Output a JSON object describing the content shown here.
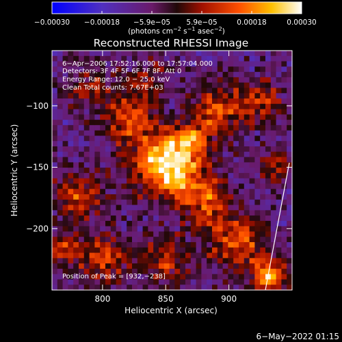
{
  "chart_data": {
    "type": "heatmap",
    "title": "Reconstructed RHESSI Image",
    "xlabel": "Heliocentric X (arcsec)",
    "ylabel": "Heliocentric Y (arcsec)",
    "xlim": [
      760,
      950
    ],
    "ylim": [
      -250,
      -55
    ],
    "x_ticks": [
      800,
      850,
      900
    ],
    "y_ticks": [
      -100,
      -150,
      -200
    ],
    "x_tick_labels": [
      "800",
      "850",
      "900"
    ],
    "y_tick_labels": [
      "−100",
      "−150",
      "−200"
    ],
    "colorbar": {
      "range": [
        -0.0003,
        0.0003
      ],
      "tick_labels": [
        "−0.00030",
        "−0.00018",
        "−5.9e−05",
        "5.9e−05",
        "0.00018",
        "0.00030"
      ],
      "units_prefix": "(photons cm",
      "units_exp1": "−2",
      "units_mid": " s",
      "units_exp2": "−1",
      "units_mid2": " asec",
      "units_exp3": "−2",
      "units_suffix": ")"
    },
    "annotations": {
      "time_range": "6−Apr−2006 17:52:16.000 to 17:57:04.000",
      "detectors": "Detectors: 3F 4F 5F 6F 7F 8F, Att 0",
      "energy_range": "Energy Range: 12.0 − 25.0 keV",
      "method_counts": "Clean    Total counts: 7.67E+03",
      "peak": "Position of Peak = [932,−238]"
    },
    "peak_position": [
      932,
      -238
    ],
    "grid": false,
    "limb_line": true
  },
  "footer": {
    "timestamp": "6−May−2022 01:15"
  },
  "colors": {
    "background": "#000000",
    "colormap": [
      "#0000ff",
      "#6a2fb0",
      "#5a1a5a",
      "#3a0a0a",
      "#a01000",
      "#ff4000",
      "#ffa000",
      "#ffff80",
      "#ffffff"
    ]
  }
}
